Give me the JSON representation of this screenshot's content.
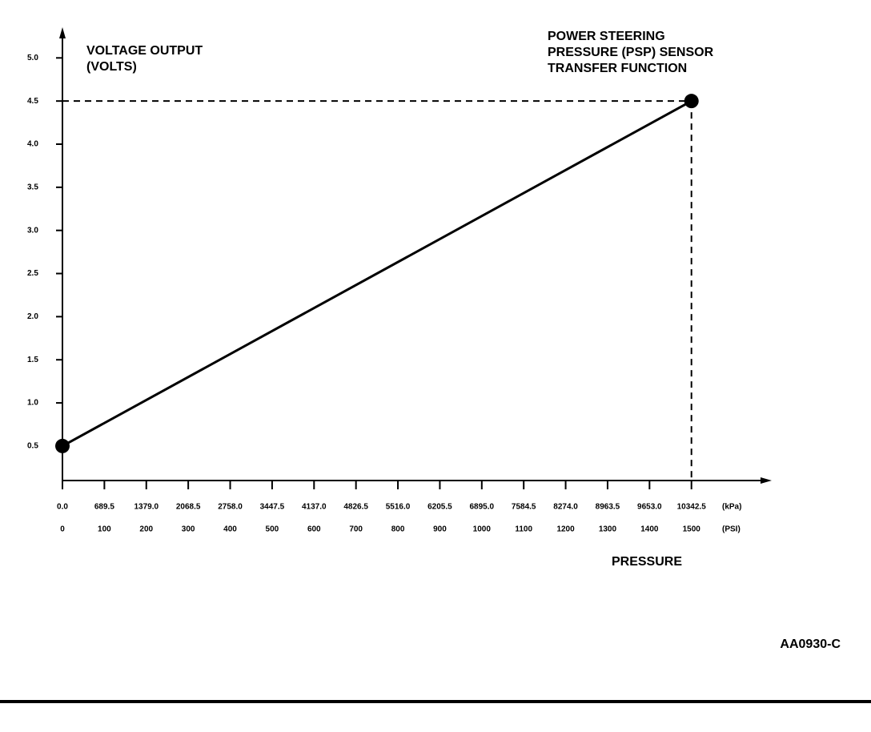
{
  "chart_data": {
    "type": "line",
    "title": [
      "POWER STEERING",
      "PRESSURE (PSP) SENSOR",
      "TRANSFER FUNCTION"
    ],
    "y_label": [
      "VOLTAGE OUTPUT",
      "(VOLTS)"
    ],
    "x_label": "PRESSURE",
    "x_unit": "(PSI)",
    "x2_unit": "(kPa)",
    "figure_code": "AA0930-C",
    "x": [
      0,
      1500
    ],
    "series": [
      {
        "color": "#000000",
        "values": [
          0.5,
          4.5
        ]
      }
    ],
    "xlim": [
      0,
      1680
    ],
    "xticks": [
      0,
      100,
      200,
      300,
      400,
      500,
      600,
      700,
      800,
      900,
      1000,
      1100,
      1200,
      1300,
      1400,
      1500
    ],
    "x2lim": [
      0,
      11583.6
    ],
    "x2ticks": [
      {
        "value": 0,
        "label": "0.0"
      },
      689.5,
      {
        "value": 1379,
        "label": "1379.0"
      },
      2068.5,
      {
        "value": 2758,
        "label": "2758.0"
      },
      3447.5,
      {
        "value": 4137,
        "label": "4137.0"
      },
      4826.5,
      {
        "value": 5516,
        "label": "5516.0"
      },
      6205.5,
      {
        "value": 6895,
        "label": "6895.0"
      },
      7584.5,
      {
        "value": 8274,
        "label": "8274.0"
      },
      8963.5,
      {
        "value": 9653,
        "label": "9653.0"
      },
      10342.5
    ],
    "ylim": [
      0.1,
      5.3
    ],
    "yticks": [
      0.5,
      {
        "value": 1,
        "label": "1.0"
      },
      1.5,
      {
        "value": 2,
        "label": "2.0"
      },
      2.5,
      {
        "value": 3,
        "label": "3.0"
      },
      3.5,
      {
        "value": 4,
        "label": "4.0"
      },
      4.5,
      {
        "value": 5,
        "label": "5.0"
      }
    ],
    "guides": true
  }
}
